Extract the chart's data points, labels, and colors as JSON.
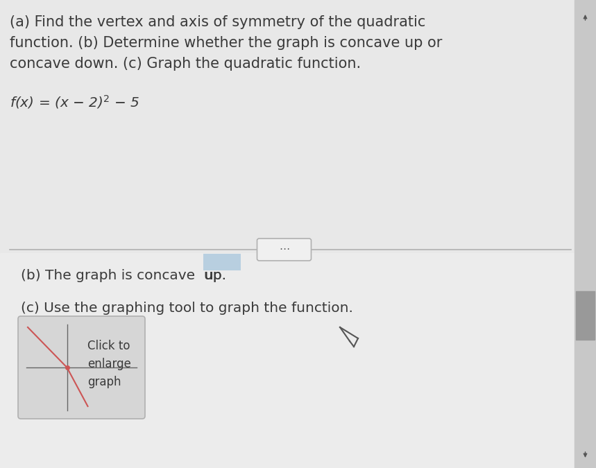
{
  "bg_top": "#e8e8e8",
  "bg_bottom": "#ececec",
  "title_lines": [
    "(a) Find the vertex and axis of symmetry of the quadratic",
    "function. (b) Determine whether the graph is concave up or",
    "concave down. (c) Graph the quadratic function."
  ],
  "function_label": "f(x) = (x − 2)",
  "title_color": "#3a3a3a",
  "title_fontsize": 15.0,
  "function_fontsize": 14.5,
  "body_fontsize": 14.5,
  "divider_color": "#b0b0b0",
  "dots_box_color": "#f0f0f0",
  "dots_box_border": "#b0b0b0",
  "highlight_color": "#b8cfe0",
  "graph_box_color": "#d8d8d8",
  "graph_box_border": "#b0b0b0",
  "scrollbar_bg": "#c8c8c8",
  "scrollbar_thumb": "#999999",
  "text_color": "#3a3a3a",
  "red_line_color": "#cc5555",
  "axis_line_color": "#666666"
}
